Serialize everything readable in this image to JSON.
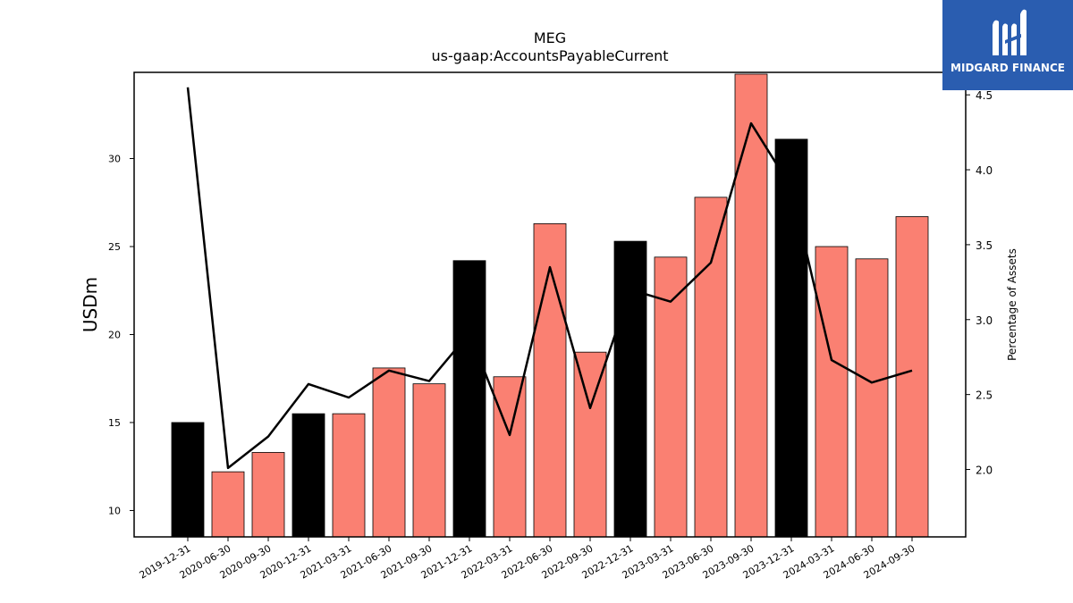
{
  "chart_data": {
    "type": "bar",
    "title": "MEG",
    "subtitle": "us-gaap:AccountsPayableCurrent",
    "ylabel": "USDm",
    "y2label": "Percentage of Assets",
    "categories": [
      "2019-12-31",
      "2020-06-30",
      "2020-09-30",
      "2020-12-31",
      "2021-03-31",
      "2021-06-30",
      "2021-09-30",
      "2021-12-31",
      "2022-03-31",
      "2022-06-30",
      "2022-09-30",
      "2022-12-31",
      "2023-03-31",
      "2023-06-30",
      "2023-09-30",
      "2023-12-31",
      "2024-03-31",
      "2024-06-30",
      "2024-09-30"
    ],
    "series": [
      {
        "type": "bar",
        "values": [
          15.0,
          12.2,
          13.3,
          15.5,
          15.5,
          18.1,
          17.2,
          24.2,
          17.6,
          26.3,
          19.0,
          25.3,
          24.4,
          27.8,
          34.8,
          31.1,
          25.0,
          24.3,
          26.7
        ],
        "colors": [
          "#000000",
          "#fa8072",
          "#fa8072",
          "#000000",
          "#fa8072",
          "#fa8072",
          "#fa8072",
          "#000000",
          "#fa8072",
          "#fa8072",
          "#fa8072",
          "#000000",
          "#fa8072",
          "#fa8072",
          "#fa8072",
          "#000000",
          "#fa8072",
          "#fa8072",
          "#fa8072"
        ]
      },
      {
        "type": "line",
        "axis": "right",
        "color": "#000000",
        "values": [
          4.55,
          2.01,
          2.22,
          2.57,
          2.48,
          2.66,
          2.59,
          2.91,
          2.23,
          3.35,
          2.41,
          3.2,
          3.12,
          3.38,
          4.31,
          3.88,
          2.73,
          2.58,
          2.66
        ]
      }
    ],
    "ylim": [
      8.5,
      34.9
    ],
    "y2lim": [
      1.55,
      4.65
    ],
    "yticks": [
      10,
      15,
      20,
      25,
      30
    ],
    "y2ticks": [
      2.0,
      2.5,
      3.0,
      3.5,
      4.0,
      4.5
    ],
    "grid": false
  },
  "logo": {
    "text": "MIDGARD FINANCE"
  }
}
